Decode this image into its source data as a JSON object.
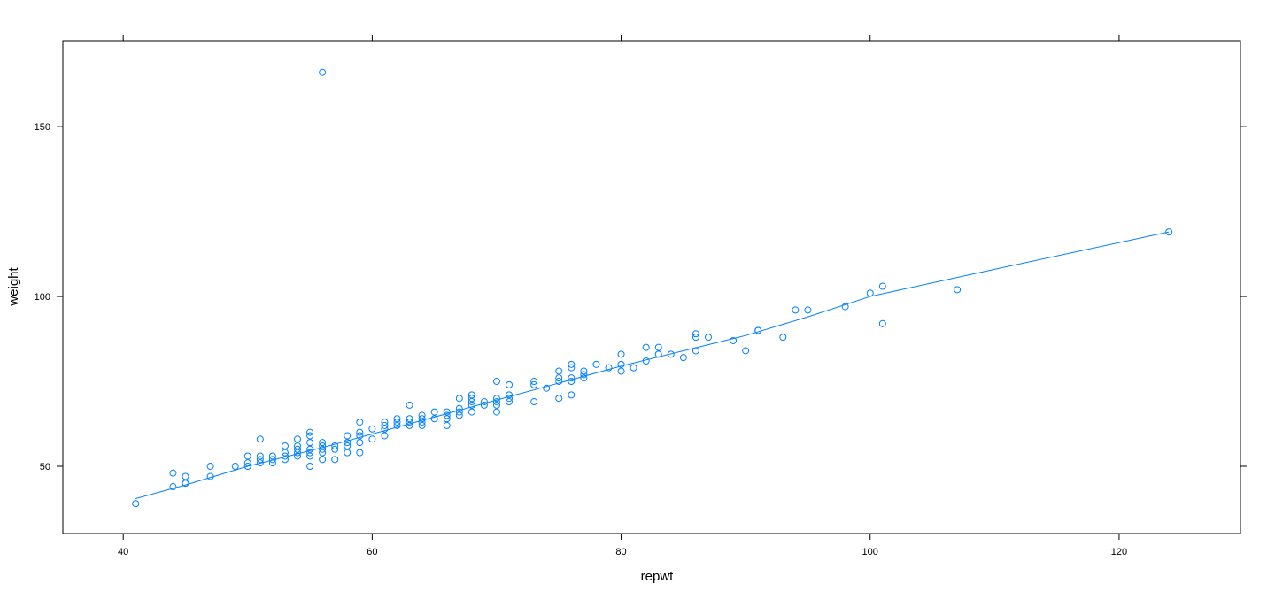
{
  "chart_data": {
    "type": "scatter",
    "x_label": "repwt",
    "y_label": "weight",
    "color": "#0080ff",
    "x": [
      41,
      44,
      44,
      45,
      45,
      45,
      47,
      47,
      49,
      50,
      50,
      50,
      51,
      51,
      51,
      51,
      52,
      52,
      52,
      53,
      53,
      53,
      53,
      54,
      54,
      54,
      54,
      54,
      55,
      55,
      55,
      55,
      55,
      55,
      55,
      56,
      56,
      56,
      56,
      56,
      56,
      57,
      57,
      57,
      58,
      58,
      58,
      58,
      59,
      59,
      59,
      59,
      59,
      60,
      60,
      61,
      61,
      61,
      61,
      62,
      62,
      62,
      63,
      63,
      63,
      63,
      64,
      64,
      64,
      64,
      65,
      65,
      66,
      66,
      66,
      66,
      67,
      67,
      67,
      67,
      68,
      68,
      68,
      68,
      68,
      69,
      69,
      70,
      70,
      70,
      70,
      70,
      71,
      71,
      71,
      71,
      73,
      73,
      73,
      74,
      75,
      75,
      75,
      75,
      76,
      76,
      76,
      76,
      76,
      77,
      77,
      77,
      78,
      79,
      80,
      80,
      80,
      81,
      82,
      82,
      83,
      83,
      84,
      85,
      86,
      86,
      86,
      87,
      89,
      90,
      91,
      91,
      93,
      94,
      95,
      98,
      100,
      101,
      101,
      107,
      124
    ],
    "y": [
      39,
      48,
      44,
      47,
      45,
      45,
      50,
      47,
      50,
      53,
      51,
      50,
      58,
      53,
      52,
      51,
      53,
      52,
      51,
      56,
      54,
      53,
      52,
      58,
      56,
      55,
      54,
      53,
      60,
      59,
      57,
      55,
      54,
      53,
      50,
      166,
      57,
      56,
      55,
      54,
      52,
      56,
      55,
      52,
      59,
      57,
      56,
      54,
      63,
      60,
      59,
      57,
      54,
      61,
      58,
      63,
      62,
      61,
      59,
      64,
      63,
      62,
      68,
      64,
      63,
      62,
      65,
      64,
      63,
      62,
      66,
      64,
      66,
      65,
      64,
      62,
      70,
      67,
      66,
      65,
      71,
      70,
      69,
      68,
      66,
      69,
      68,
      75,
      70,
      69,
      68,
      66,
      74,
      71,
      70,
      69,
      75,
      74,
      69,
      73,
      78,
      76,
      75,
      70,
      80,
      79,
      76,
      75,
      71,
      78,
      77,
      76,
      80,
      79,
      83,
      80,
      78,
      79,
      85,
      81,
      85,
      83,
      83,
      82,
      89,
      88,
      84,
      88,
      87,
      84,
      90,
      90,
      88,
      96,
      96,
      97,
      101,
      103,
      92,
      102,
      119
    ],
    "fit": {
      "x": [
        41,
        45,
        50,
        56,
        60,
        65,
        70,
        75,
        80,
        85,
        90,
        95,
        100,
        110,
        124
      ],
      "y": [
        40.5,
        44.5,
        50,
        55.5,
        59.5,
        64.5,
        69.5,
        74.5,
        79.5,
        84,
        88.5,
        94,
        100,
        108,
        119
      ]
    },
    "xlim": [
      35.15,
      129.75
    ],
    "xticks": [
      40,
      60,
      80,
      100,
      120
    ],
    "ylim": [
      30.2,
      175.3
    ],
    "yticks": [
      50,
      100,
      150
    ]
  }
}
